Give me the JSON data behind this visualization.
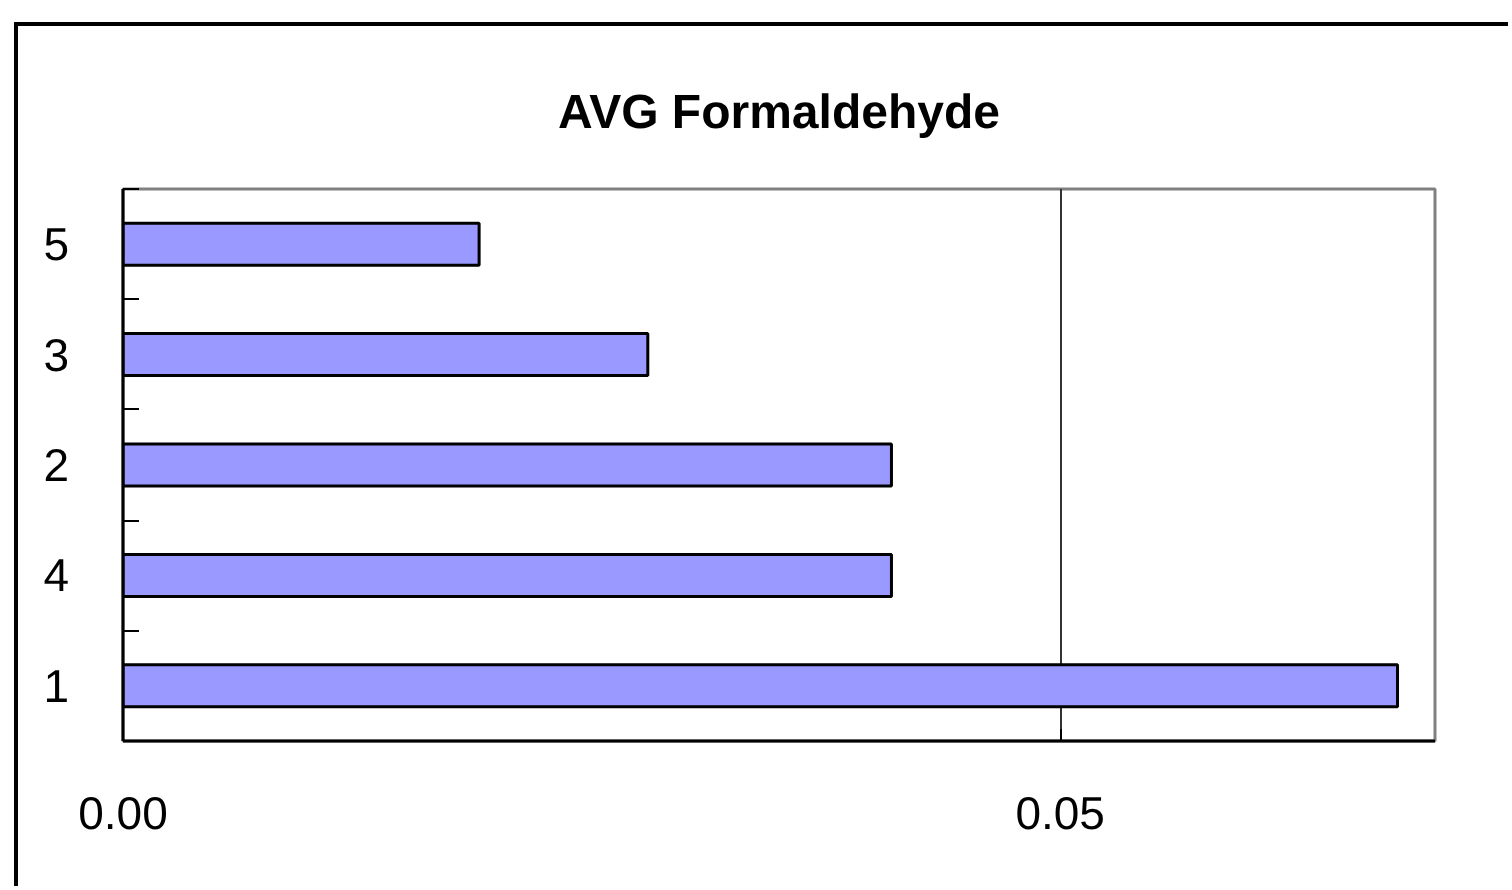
{
  "chart_data": {
    "type": "bar",
    "orientation": "horizontal",
    "title": "AVG Formaldehyde",
    "categories": [
      "5",
      "3",
      "2",
      "4",
      "1"
    ],
    "values": [
      0.019,
      0.028,
      0.041,
      0.041,
      0.068
    ],
    "color": "#9999ff",
    "xlim": [
      0,
      0.07
    ],
    "xticks": [
      {
        "value": 0,
        "label": "0.00"
      },
      0.05
    ],
    "grid": "x"
  }
}
